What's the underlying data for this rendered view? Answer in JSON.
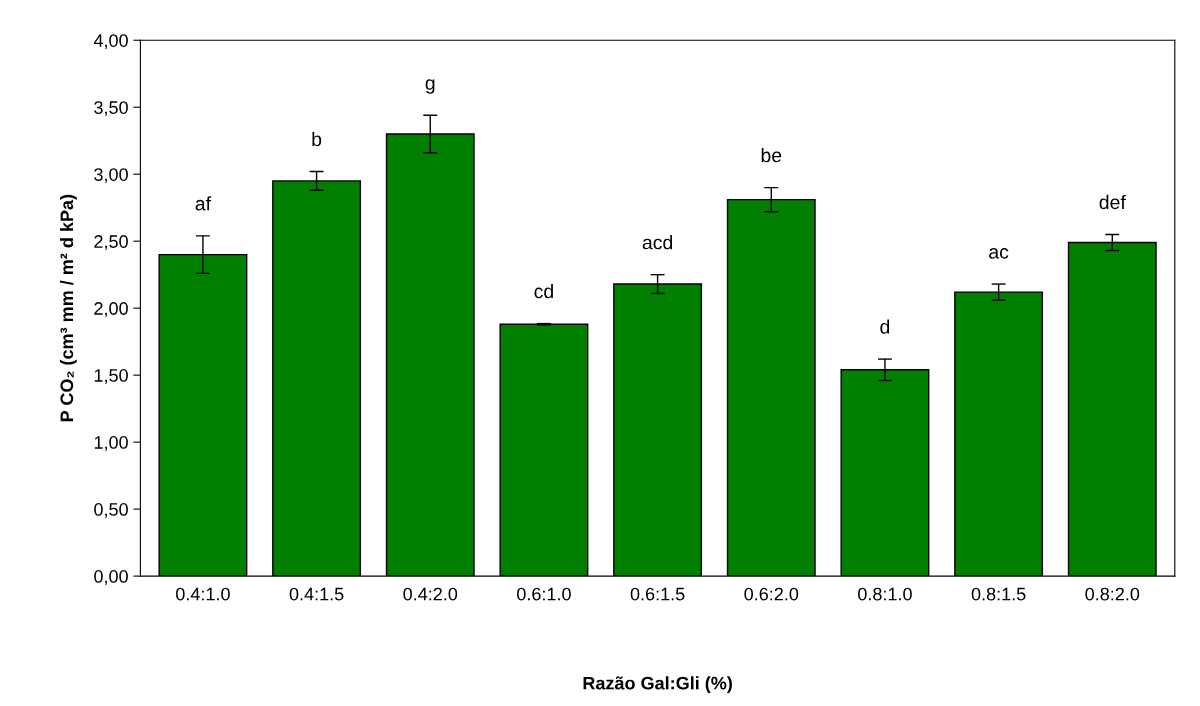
{
  "chart_data": {
    "type": "bar",
    "categories": [
      "0.4:1.0",
      "0.4:1.5",
      "0.4:2.0",
      "0.6:1.0",
      "0.6:1.5",
      "0.6:2.0",
      "0.8:1.0",
      "0.8:1.5",
      "0.8:2.0"
    ],
    "values": [
      2.4,
      2.95,
      3.3,
      1.88,
      2.18,
      2.81,
      1.54,
      2.12,
      2.49
    ],
    "errors": [
      0.14,
      0.07,
      0.14,
      0.005,
      0.07,
      0.09,
      0.08,
      0.06,
      0.06
    ],
    "color": "#007f00",
    "xlabel": "Razão Gal:Gli (%)",
    "ylabel": "P CO₂ (cm³ mm / m² d kPa)",
    "ylim": [
      0,
      4
    ],
    "yticks": [
      {
        "value": 0,
        "label": "0,00"
      },
      {
        "value": 0.5,
        "label": "0,50"
      },
      {
        "value": 1,
        "label": "1,00"
      },
      {
        "value": 1.5,
        "label": "1,50"
      },
      {
        "value": 2,
        "label": "2,00"
      },
      {
        "value": 2.5,
        "label": "2,50"
      },
      {
        "value": 3,
        "label": "3,00"
      },
      {
        "value": 3.5,
        "label": "3,50"
      },
      {
        "value": 4,
        "label": "4,00"
      }
    ],
    "grid": false,
    "legend": false,
    "annotations": [
      "af",
      "b",
      "g",
      "cd",
      "acd",
      "be",
      "d",
      "ac",
      "def"
    ]
  }
}
